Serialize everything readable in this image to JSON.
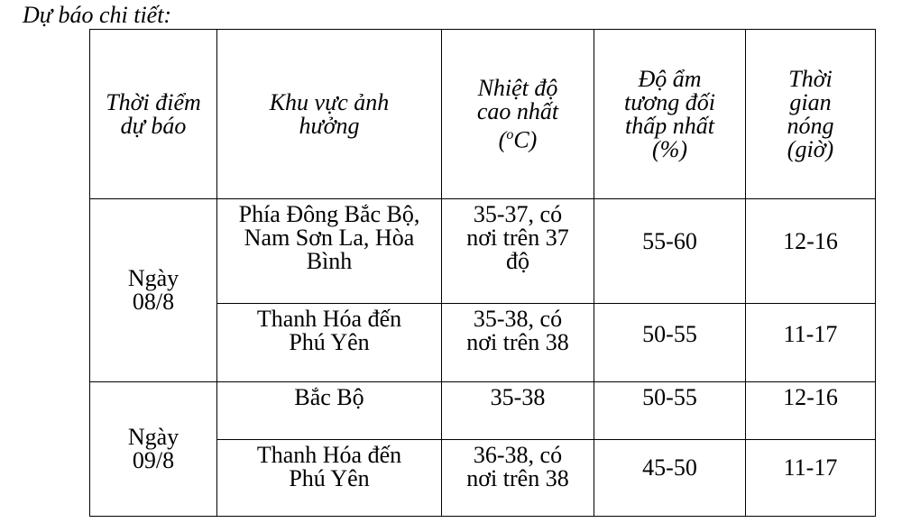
{
  "title": "Dự báo chi tiết:",
  "headers": {
    "time": "Thời điểm\ndự báo",
    "region": "Khu vực ảnh\nhưởng",
    "temp": "Nhiệt độ\ncao nhất\n",
    "temp_unit_open": "(",
    "temp_unit_sup": "o",
    "temp_unit_close": "C)",
    "humidity": "Độ ẩm\ntương đối\nthấp nhất\n(%)",
    "hours": "Thời\ngian\nnóng\n(giờ)"
  },
  "groups": [
    {
      "day": "Ngày\n08/8",
      "rows": [
        {
          "region": "Phía Đông Bắc Bộ,\nNam Sơn La, Hòa\nBình",
          "temp": "35-37, có\nnơi trên 37\nđộ",
          "humidity": "55-60",
          "hours": "12-16"
        },
        {
          "region": "Thanh Hóa đến\nPhú Yên",
          "temp": "35-38, có\nnơi trên 38",
          "humidity": "50-55",
          "hours": "11-17"
        }
      ]
    },
    {
      "day": "Ngày\n09/8",
      "rows": [
        {
          "region": "Bắc Bộ",
          "temp": "35-38",
          "humidity": "50-55",
          "hours": "12-16"
        },
        {
          "region": "Thanh Hóa đến\nPhú Yên",
          "temp": "36-38, có\nnơi trên 38",
          "humidity": "45-50",
          "hours": "11-17"
        }
      ]
    }
  ]
}
